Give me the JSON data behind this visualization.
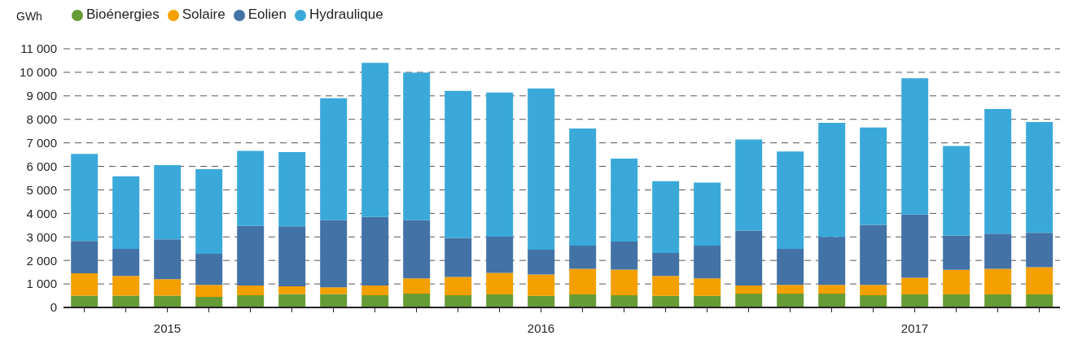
{
  "chart_data": {
    "type": "bar",
    "stacked": true,
    "ylabel": "GWh",
    "categories": [
      null,
      null,
      "2015",
      null,
      null,
      null,
      null,
      null,
      null,
      null,
      null,
      "2016",
      null,
      null,
      null,
      null,
      null,
      null,
      null,
      null,
      "2017",
      null,
      null,
      null
    ],
    "series": [
      {
        "name": "Bioénergies",
        "color": "#669c35",
        "values": [
          500,
          500,
          500,
          450,
          520,
          570,
          570,
          520,
          590,
          520,
          550,
          490,
          550,
          520,
          490,
          490,
          590,
          590,
          590,
          520,
          550,
          550,
          550,
          550
        ]
      },
      {
        "name": "Solaire",
        "color": "#f4a000",
        "values": [
          950,
          840,
          700,
          510,
          410,
          330,
          290,
          410,
          650,
          780,
          920,
          910,
          1090,
          1090,
          850,
          750,
          340,
          370,
          370,
          440,
          710,
          1050,
          1090,
          1160
        ]
      },
      {
        "name": "Eolien",
        "color": "#4272a6",
        "values": [
          1380,
          1150,
          1700,
          1320,
          2540,
          2550,
          2850,
          2920,
          2470,
          1660,
          1540,
          1060,
          990,
          1190,
          980,
          1390,
          2340,
          1530,
          2040,
          2550,
          2690,
          1460,
          1500,
          1460
        ]
      },
      {
        "name": "Hydraulique",
        "color": "#3aa9da",
        "values": [
          3700,
          3090,
          3150,
          3600,
          3190,
          3160,
          5190,
          6550,
          6280,
          6250,
          6130,
          6850,
          4980,
          3530,
          3050,
          2680,
          3870,
          4140,
          4850,
          4140,
          5800,
          3810,
          5300,
          4720
        ]
      }
    ],
    "ylim": [
      0,
      11000
    ],
    "yticks": [
      {
        "value": 0,
        "label": "0"
      },
      {
        "value": 1000,
        "label": "1 000"
      },
      {
        "value": 2000,
        "label": "2 000"
      },
      {
        "value": 3000,
        "label": "3 000"
      },
      {
        "value": 4000,
        "label": "4 000"
      },
      {
        "value": 5000,
        "label": "5 000"
      },
      {
        "value": 6000,
        "label": "6 000"
      },
      {
        "value": 7000,
        "label": "7 000"
      },
      {
        "value": 8000,
        "label": "8 000"
      },
      {
        "value": 9000,
        "label": "9 000"
      },
      {
        "value": 10000,
        "label": "10 000"
      },
      {
        "value": 11000,
        "label": "11 000"
      }
    ],
    "grid": "y",
    "legend": "top left"
  }
}
